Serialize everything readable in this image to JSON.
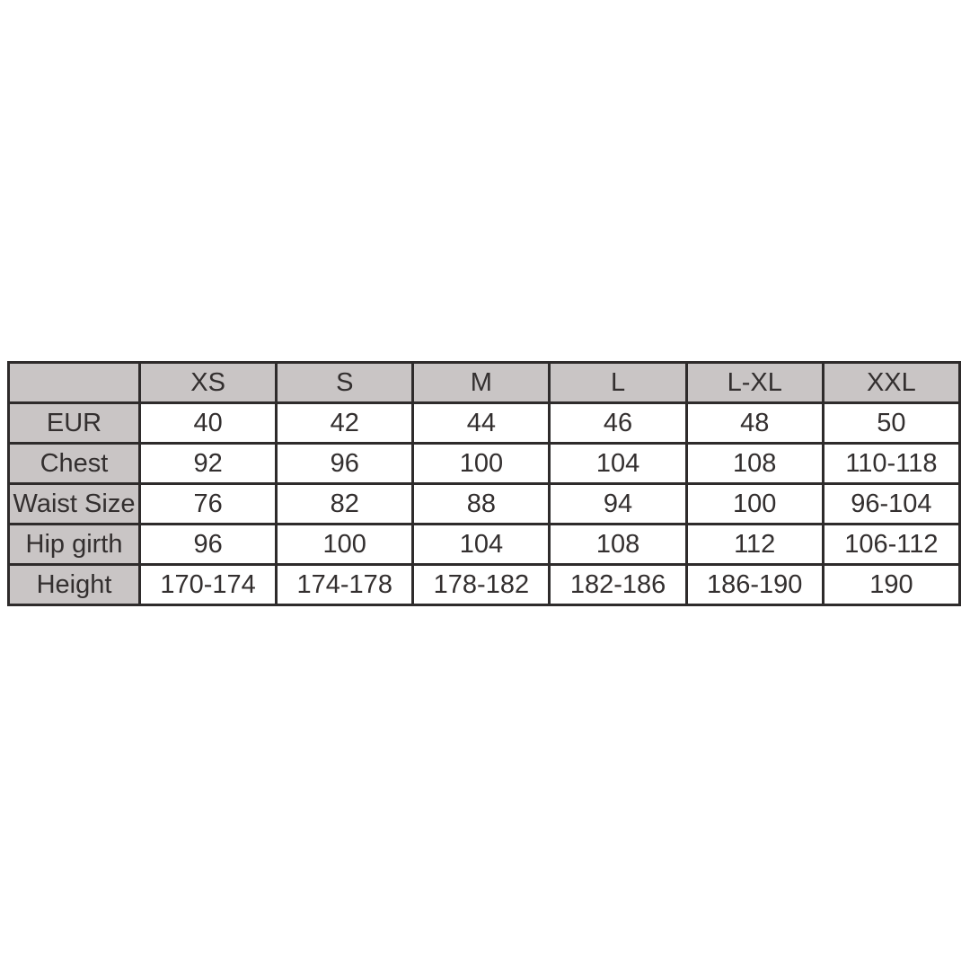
{
  "colors": {
    "page_bg": "#ffffff",
    "header_fill": "#c9c5c5",
    "border": "#2e2b2b",
    "text": "#332f2f"
  },
  "chart_data": {
    "type": "table",
    "title": "",
    "columns": [
      "",
      "XS",
      "S",
      "M",
      "L",
      "L-XL",
      "XXL"
    ],
    "rows": [
      {
        "label": "EUR",
        "values": [
          "40",
          "42",
          "44",
          "46",
          "48",
          "50"
        ]
      },
      {
        "label": "Chest",
        "values": [
          "92",
          "96",
          "100",
          "104",
          "108",
          "110-118"
        ]
      },
      {
        "label": "Waist Size",
        "values": [
          "76",
          "82",
          "88",
          "94",
          "100",
          "96-104"
        ]
      },
      {
        "label": "Hip girth",
        "values": [
          "96",
          "100",
          "104",
          "108",
          "112",
          "106-112"
        ]
      },
      {
        "label": "Height",
        "values": [
          "170-174",
          "174-178",
          "178-182",
          "182-186",
          "186-190",
          "190"
        ]
      }
    ]
  }
}
